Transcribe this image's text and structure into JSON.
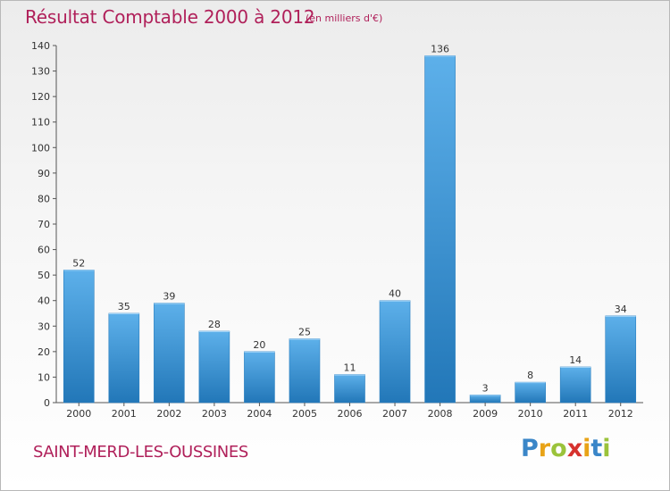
{
  "chart_data": {
    "type": "bar",
    "title": "Résultat Comptable 2000 à 2012",
    "subtitle": "(en milliers d'€)",
    "categories": [
      "2000",
      "2001",
      "2002",
      "2003",
      "2004",
      "2005",
      "2006",
      "2007",
      "2008",
      "2009",
      "2010",
      "2011",
      "2012"
    ],
    "values": [
      52,
      35,
      39,
      28,
      20,
      25,
      11,
      40,
      136,
      3,
      8,
      14,
      34
    ],
    "ylim": [
      0,
      140
    ],
    "ytick_step": 10,
    "xlabel": "",
    "ylabel": "",
    "grid": false,
    "bar_color_light": "#5db0ea",
    "bar_color_dark": "#2277b8"
  },
  "footer": {
    "commune": "SAINT-MERD-LES-OUSSINES",
    "logo_letters": [
      "P",
      "r",
      "o",
      "x",
      "i",
      "t",
      "i"
    ],
    "logo_colors": [
      "#3a86c8",
      "#e8a317",
      "#9bc33b",
      "#d6322e",
      "#e8a317",
      "#3a86c8",
      "#9bc33b"
    ]
  },
  "colors": {
    "title": "#b0205a",
    "axis": "#555555"
  }
}
